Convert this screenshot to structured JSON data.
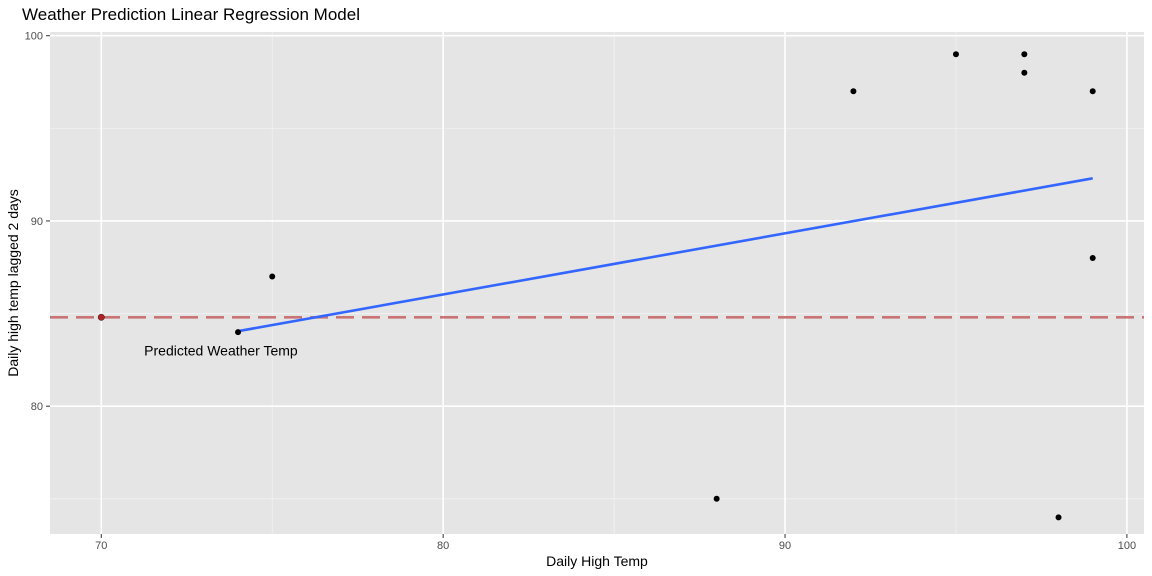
{
  "chart_data": {
    "type": "scatter",
    "title": "Weather Prediction Linear Regression Model",
    "xlabel": "Daily High Temp",
    "ylabel": "Daily high temp lagged 2 days",
    "xlim": [
      68.5,
      100.5
    ],
    "ylim": [
      73.1,
      100.2
    ],
    "x_ticks": [
      70,
      80,
      90,
      100
    ],
    "x_minor_ticks": [
      75,
      85,
      95
    ],
    "y_ticks": [
      80,
      90,
      100
    ],
    "y_minor_ticks": [
      75,
      85,
      95
    ],
    "grid": true,
    "points": [
      {
        "x": 74,
        "y": 84
      },
      {
        "x": 75,
        "y": 87
      },
      {
        "x": 88,
        "y": 75
      },
      {
        "x": 92,
        "y": 97
      },
      {
        "x": 95,
        "y": 99
      },
      {
        "x": 97,
        "y": 99
      },
      {
        "x": 97,
        "y": 98
      },
      {
        "x": 98,
        "y": 74
      },
      {
        "x": 99,
        "y": 97
      },
      {
        "x": 99,
        "y": 88
      }
    ],
    "regression_line": {
      "color": "#3366ff",
      "points": [
        {
          "x": 74,
          "y": 84.05
        },
        {
          "x": 99,
          "y": 92.3
        }
      ]
    },
    "hline": {
      "y": 84.8,
      "color": "#c97575",
      "style": "dashed"
    },
    "predicted_point": {
      "x": 70,
      "y": 84.8,
      "color": "#b22222"
    },
    "annotation": {
      "text": "Predicted Weather Temp",
      "x": 73.5,
      "y": 83
    },
    "colors": {
      "panel_background": "#e5e5e5",
      "grid_major": "#ffffff",
      "grid_minor": "#f2f2f2",
      "point": "#000000"
    }
  }
}
